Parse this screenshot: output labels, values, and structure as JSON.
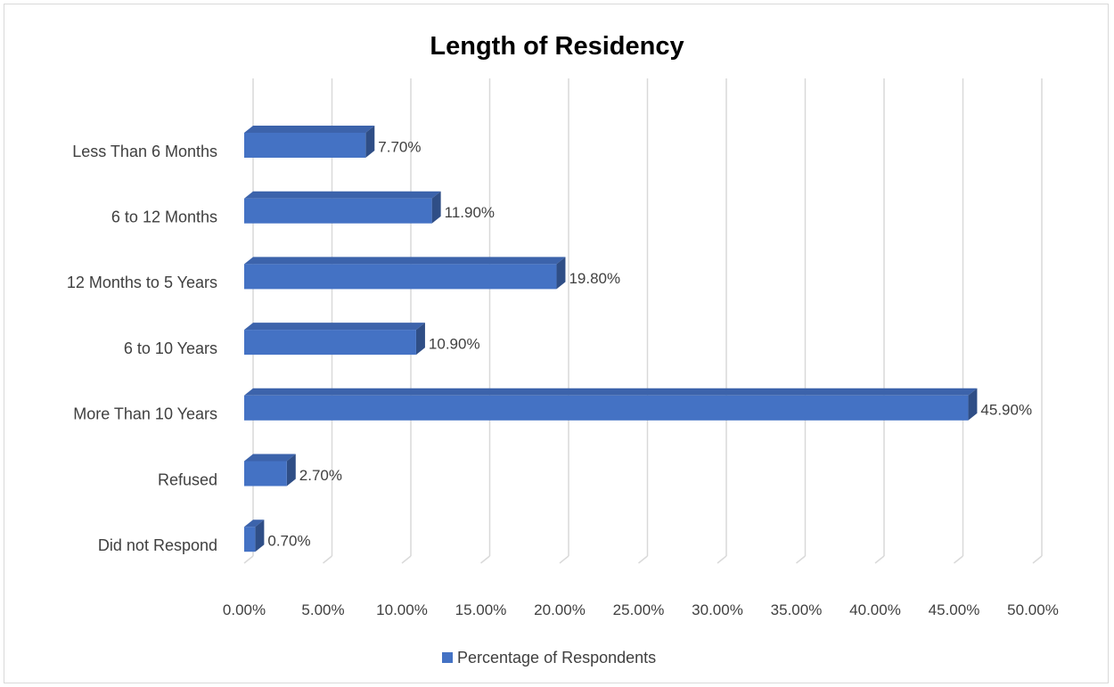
{
  "chart_data": {
    "type": "bar",
    "orientation": "horizontal",
    "title": "Length of Residency",
    "categories": [
      "Less Than 6 Months",
      "6 to 12 Months",
      "12 Months to 5 Years",
      "6 to 10 Years",
      "More Than 10 Years",
      "Refused",
      "Did not Respond"
    ],
    "series": [
      {
        "name": "Percentage of Respondents",
        "values": [
          7.7,
          11.9,
          19.8,
          10.9,
          45.9,
          2.7,
          0.7
        ],
        "data_labels": [
          "7.70%",
          "11.90%",
          "19.80%",
          "10.90%",
          "45.90%",
          "2.70%",
          "0.70%"
        ],
        "color": "#4472c4"
      }
    ],
    "xlim": [
      0,
      50
    ],
    "x_ticks": [
      "0.00%",
      "5.00%",
      "10.00%",
      "15.00%",
      "20.00%",
      "25.00%",
      "30.00%",
      "35.00%",
      "40.00%",
      "45.00%",
      "50.00%"
    ],
    "grid": true,
    "legend_position": "bottom",
    "bar_colors": {
      "front": "#4472c4",
      "top": "#3c63ab",
      "side": "#2f4e86"
    },
    "grid_color": "#d9d9d9"
  }
}
